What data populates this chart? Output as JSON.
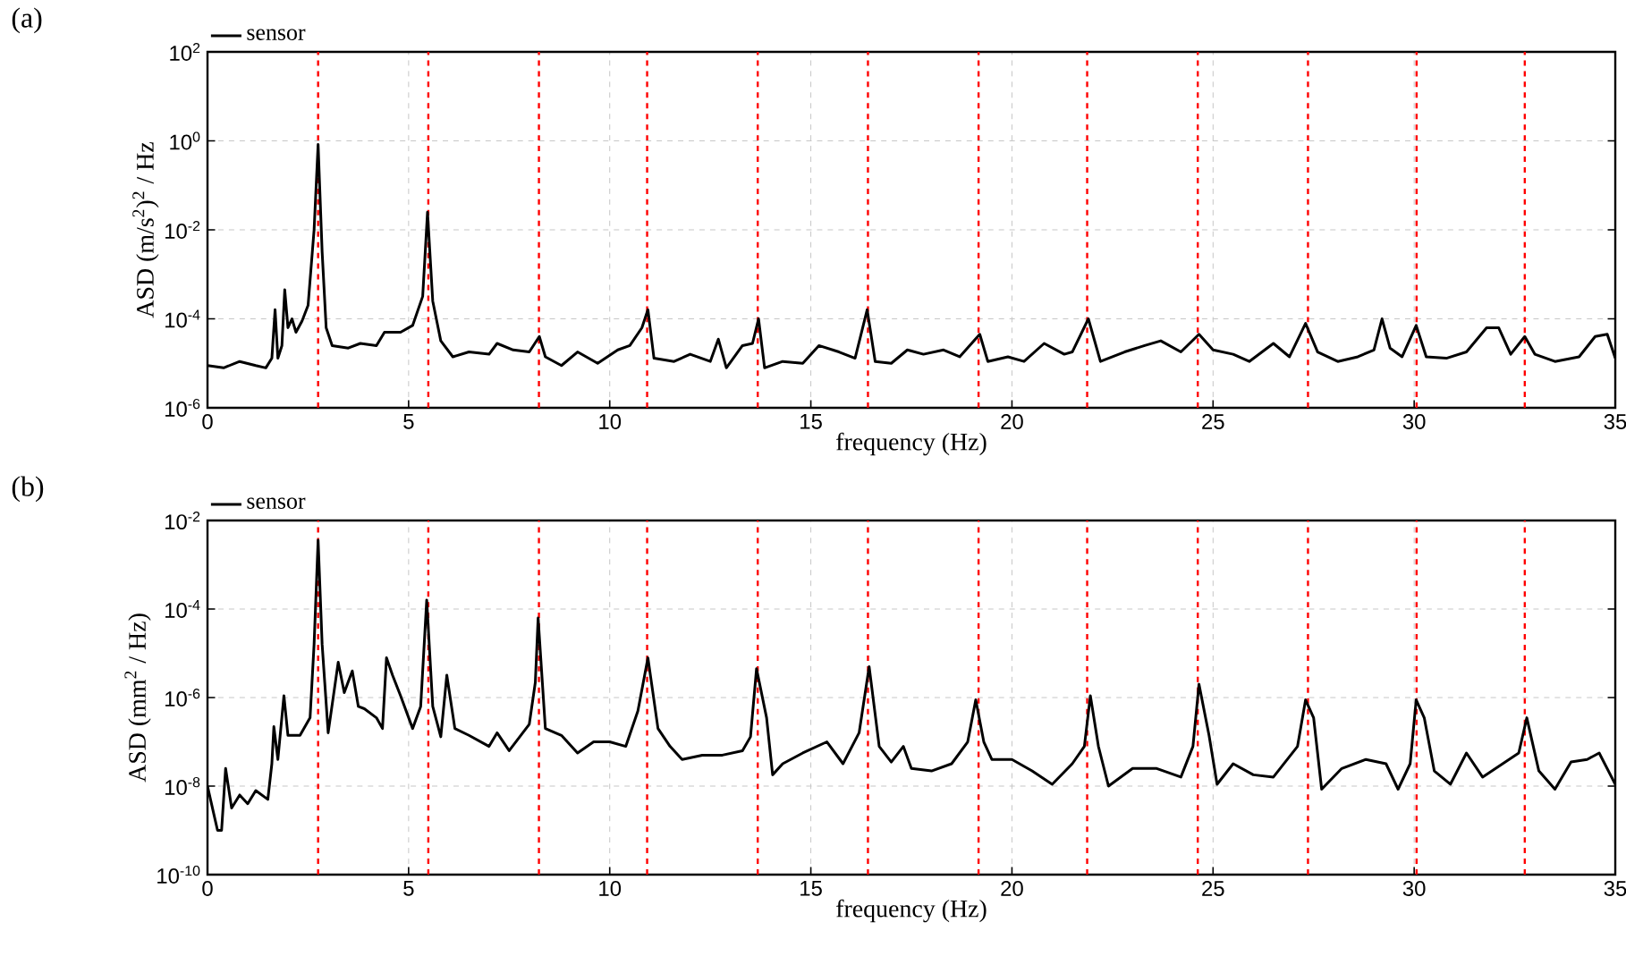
{
  "chart_data": [
    {
      "type": "line",
      "annotations": [
        "(a)"
      ],
      "xlabel": "frequency  (Hz)",
      "ylabel": "ASD  (m/s$^{2}$)$^{2}$ / Hz",
      "log": "y",
      "grid": true,
      "legend": "top left",
      "line_style": "solid",
      "marker": "none",
      "xlim": [
        0,
        35
      ],
      "xticks": [
        0,
        5,
        10,
        15,
        20,
        25,
        30,
        35
      ],
      "ylim": [
        1e-06,
        100
      ],
      "yticks": [
        {
          "value": 100,
          "label": "10$^{2}$"
        },
        {
          "value": 1,
          "label": "10$^{0}$"
        },
        {
          "value": 0.01,
          "label": "10$^{-2}$"
        },
        {
          "value": 0.0001,
          "label": "10$^{-4}$"
        },
        {
          "value": 1e-06,
          "label": "10$^{-6}$"
        }
      ],
      "ref_lines": [
        {
          "axis": "x",
          "value": 2.75,
          "color": "#ff0000",
          "line_style": "dashed"
        },
        {
          "axis": "x",
          "value": 5.49,
          "color": "#ff0000",
          "line_style": "dashed"
        },
        {
          "axis": "x",
          "value": 8.24,
          "color": "#ff0000",
          "line_style": "dashed"
        },
        {
          "axis": "x",
          "value": 10.93,
          "color": "#ff0000",
          "line_style": "dashed"
        },
        {
          "axis": "x",
          "value": 13.68,
          "color": "#ff0000",
          "line_style": "dashed"
        },
        {
          "axis": "x",
          "value": 16.42,
          "color": "#ff0000",
          "line_style": "dashed"
        },
        {
          "axis": "x",
          "value": 19.17,
          "color": "#ff0000",
          "line_style": "dashed"
        },
        {
          "axis": "x",
          "value": 21.87,
          "color": "#ff0000",
          "line_style": "dashed"
        },
        {
          "axis": "x",
          "value": 24.62,
          "color": "#ff0000",
          "line_style": "dashed"
        },
        {
          "axis": "x",
          "value": 27.36,
          "color": "#ff0000",
          "line_style": "dashed"
        },
        {
          "axis": "x",
          "value": 30.06,
          "color": "#ff0000",
          "line_style": "dashed"
        },
        {
          "axis": "x",
          "value": 32.75,
          "color": "#ff0000",
          "line_style": "dashed"
        }
      ],
      "series": [
        {
          "name": "sensor",
          "color": "#000000",
          "x": [
            0,
            0.4,
            0.8,
            1.2,
            1.45,
            1.6,
            1.68,
            1.75,
            1.85,
            1.92,
            2.0,
            2.1,
            2.2,
            2.35,
            2.5,
            2.65,
            2.75,
            2.85,
            2.95,
            3.1,
            3.5,
            3.8,
            4.2,
            4.4,
            4.8,
            5.1,
            5.35,
            5.47,
            5.6,
            5.8,
            6.1,
            6.5,
            7.0,
            7.2,
            7.6,
            8.0,
            8.25,
            8.4,
            8.8,
            9.2,
            9.7,
            10.2,
            10.5,
            10.8,
            10.95,
            11.1,
            11.6,
            12.0,
            12.5,
            12.7,
            12.9,
            13.3,
            13.55,
            13.7,
            13.85,
            14.3,
            14.8,
            15.2,
            15.7,
            16.1,
            16.4,
            16.6,
            17.0,
            17.4,
            17.8,
            18.3,
            18.7,
            19.2,
            19.4,
            19.9,
            20.3,
            20.8,
            21.3,
            21.5,
            21.9,
            22.2,
            22.8,
            23.3,
            23.7,
            24.2,
            24.65,
            25.0,
            25.5,
            25.9,
            26.5,
            26.9,
            27.3,
            27.6,
            28.1,
            28.6,
            29.0,
            29.2,
            29.4,
            29.7,
            30.05,
            30.3,
            30.8,
            31.3,
            31.8,
            32.1,
            32.4,
            32.75,
            33.0,
            33.5,
            34.1,
            34.5,
            34.8,
            35
          ],
          "values": [
            8.9e-06,
            7.9e-06,
            1.1e-05,
            8.9e-06,
            7.9e-06,
            1.3e-05,
            0.00016,
            1.3e-05,
            2.5e-05,
            0.00045,
            6.3e-05,
            0.0001,
            5e-05,
            8.9e-05,
            0.0002,
            0.01,
            0.83,
            0.0032,
            6.3e-05,
            2.5e-05,
            2.2e-05,
            2.8e-05,
            2.5e-05,
            5e-05,
            5e-05,
            7.1e-05,
            0.00032,
            0.025,
            0.00025,
            3.2e-05,
            1.4e-05,
            1.8e-05,
            1.6e-05,
            2.8e-05,
            2e-05,
            1.8e-05,
            4e-05,
            1.4e-05,
            8.9e-06,
            1.8e-05,
            1e-05,
            2e-05,
            2.5e-05,
            6.3e-05,
            0.00016,
            1.3e-05,
            1.1e-05,
            1.6e-05,
            1.1e-05,
            3.5e-05,
            7.9e-06,
            2.5e-05,
            2.8e-05,
            0.0001,
            7.9e-06,
            1.1e-05,
            1e-05,
            2.5e-05,
            1.8e-05,
            1.3e-05,
            0.00016,
            1.1e-05,
            1e-05,
            2e-05,
            1.6e-05,
            2e-05,
            1.4e-05,
            4.5e-05,
            1.1e-05,
            1.4e-05,
            1.1e-05,
            2.8e-05,
            1.6e-05,
            1.8e-05,
            0.0001,
            1.1e-05,
            1.8e-05,
            2.5e-05,
            3.2e-05,
            1.8e-05,
            4.5e-05,
            2e-05,
            1.6e-05,
            1.1e-05,
            2.8e-05,
            1.4e-05,
            7.9e-05,
            1.8e-05,
            1.1e-05,
            1.4e-05,
            2e-05,
            0.0001,
            2.2e-05,
            1.4e-05,
            7.1e-05,
            1.4e-05,
            1.3e-05,
            1.8e-05,
            6.3e-05,
            6.3e-05,
            1.6e-05,
            4e-05,
            1.6e-05,
            1.1e-05,
            1.4e-05,
            4e-05,
            4.5e-05,
            1.3e-05
          ]
        }
      ]
    },
    {
      "type": "line",
      "annotations": [
        "(b)"
      ],
      "xlabel": "frequency  (Hz)",
      "ylabel": "ASD  (mm$^{2}$ / Hz)",
      "log": "y",
      "grid": true,
      "legend": "top left",
      "line_style": "solid",
      "marker": "none",
      "xlim": [
        0,
        35
      ],
      "xticks": [
        0,
        5,
        10,
        15,
        20,
        25,
        30,
        35
      ],
      "ylim": [
        1e-10,
        0.01
      ],
      "yticks": [
        {
          "value": 0.01,
          "label": "10$^{-2}$"
        },
        {
          "value": 0.0001,
          "label": "10$^{-4}$"
        },
        {
          "value": 1e-06,
          "label": "10$^{-6}$"
        },
        {
          "value": 1e-08,
          "label": "10$^{-8}$"
        },
        {
          "value": 1e-10,
          "label": "10$^{-10}$"
        }
      ],
      "ref_lines": [
        {
          "axis": "x",
          "value": 2.75,
          "color": "#ff0000",
          "line_style": "dashed"
        },
        {
          "axis": "x",
          "value": 5.49,
          "color": "#ff0000",
          "line_style": "dashed"
        },
        {
          "axis": "x",
          "value": 8.24,
          "color": "#ff0000",
          "line_style": "dashed"
        },
        {
          "axis": "x",
          "value": 10.93,
          "color": "#ff0000",
          "line_style": "dashed"
        },
        {
          "axis": "x",
          "value": 13.68,
          "color": "#ff0000",
          "line_style": "dashed"
        },
        {
          "axis": "x",
          "value": 16.42,
          "color": "#ff0000",
          "line_style": "dashed"
        },
        {
          "axis": "x",
          "value": 19.17,
          "color": "#ff0000",
          "line_style": "dashed"
        },
        {
          "axis": "x",
          "value": 21.87,
          "color": "#ff0000",
          "line_style": "dashed"
        },
        {
          "axis": "x",
          "value": 24.62,
          "color": "#ff0000",
          "line_style": "dashed"
        },
        {
          "axis": "x",
          "value": 27.36,
          "color": "#ff0000",
          "line_style": "dashed"
        },
        {
          "axis": "x",
          "value": 30.06,
          "color": "#ff0000",
          "line_style": "dashed"
        },
        {
          "axis": "x",
          "value": 32.75,
          "color": "#ff0000",
          "line_style": "dashed"
        }
      ],
      "series": [
        {
          "name": "sensor",
          "color": "#000000",
          "x": [
            0,
            0.15,
            0.25,
            0.35,
            0.45,
            0.6,
            0.8,
            1.0,
            1.2,
            1.5,
            1.6,
            1.65,
            1.75,
            1.9,
            2.0,
            2.3,
            2.55,
            2.65,
            2.75,
            2.85,
            3.0,
            3.25,
            3.4,
            3.6,
            3.75,
            3.9,
            4.2,
            4.35,
            4.45,
            4.6,
            4.8,
            5.1,
            5.3,
            5.45,
            5.6,
            5.8,
            5.95,
            6.15,
            6.5,
            7.0,
            7.2,
            7.5,
            8.0,
            8.15,
            8.22,
            8.4,
            8.8,
            9.2,
            9.6,
            10.0,
            10.4,
            10.7,
            10.95,
            11.2,
            11.5,
            11.8,
            12.3,
            12.8,
            13.3,
            13.5,
            13.65,
            13.9,
            14.05,
            14.3,
            14.8,
            15.4,
            15.8,
            16.2,
            16.45,
            16.7,
            17.0,
            17.3,
            17.5,
            18.0,
            18.5,
            18.9,
            19.1,
            19.3,
            19.5,
            20.0,
            20.5,
            21.0,
            21.5,
            21.8,
            21.95,
            22.15,
            22.4,
            23.0,
            23.6,
            24.2,
            24.5,
            24.65,
            24.9,
            25.1,
            25.5,
            26.0,
            26.5,
            27.1,
            27.3,
            27.5,
            27.7,
            28.2,
            28.8,
            29.3,
            29.6,
            29.9,
            30.05,
            30.25,
            30.5,
            30.9,
            31.3,
            31.7,
            32.2,
            32.6,
            32.8,
            33.1,
            33.5,
            33.9,
            34.3,
            34.6,
            35.0
          ],
          "values": [
            1e-08,
            2.5e-09,
            1e-09,
            1e-09,
            2.5e-08,
            3.2e-09,
            6.3e-09,
            4e-09,
            7.9e-09,
            5e-09,
            3.2e-08,
            2.2e-07,
            4e-08,
            1.1e-06,
            1.4e-07,
            1.4e-07,
            3.5e-07,
            1.6e-05,
            0.0036,
            1.6e-05,
            1.6e-07,
            6.3e-06,
            1.3e-06,
            4e-06,
            6.3e-07,
            5.6e-07,
            3.5e-07,
            2e-07,
            7.9e-06,
            3.2e-06,
            1.1e-06,
            2e-07,
            6.3e-07,
            0.00016,
            6.3e-07,
            1.3e-07,
            3.2e-06,
            2e-07,
            1.4e-07,
            7.9e-08,
            1.6e-07,
            6.3e-08,
            2.5e-07,
            2.2e-06,
            6.3e-05,
            2e-07,
            1.4e-07,
            5.6e-08,
            1e-07,
            1e-07,
            7.9e-08,
            5e-07,
            7.9e-06,
            2e-07,
            7.9e-08,
            4e-08,
            5e-08,
            5e-08,
            6.3e-08,
            1.3e-07,
            4.5e-06,
            3.5e-07,
            1.8e-08,
            3.2e-08,
            5.6e-08,
            1e-07,
            3.2e-08,
            1.6e-07,
            5e-06,
            7.9e-08,
            3.5e-08,
            7.9e-08,
            2.5e-08,
            2.2e-08,
            3.2e-08,
            1e-07,
            8.9e-07,
            1e-07,
            4e-08,
            4e-08,
            2.2e-08,
            1.1e-08,
            3.2e-08,
            7.9e-08,
            1.1e-06,
            7.9e-08,
            1e-08,
            2.5e-08,
            2.5e-08,
            1.6e-08,
            7.9e-08,
            2e-06,
            1.4e-07,
            1.1e-08,
            3.2e-08,
            1.8e-08,
            1.6e-08,
            7.9e-08,
            8.9e-07,
            3.5e-07,
            8.5e-09,
            2.5e-08,
            4e-08,
            3.2e-08,
            8.5e-09,
            3.2e-08,
            8.9e-07,
            3.5e-07,
            2.2e-08,
            1.1e-08,
            5.6e-08,
            1.6e-08,
            3.2e-08,
            5.6e-08,
            3.5e-07,
            2.2e-08,
            8.5e-09,
            3.5e-08,
            4e-08,
            5.6e-08,
            1.1e-08
          ]
        }
      ]
    }
  ]
}
